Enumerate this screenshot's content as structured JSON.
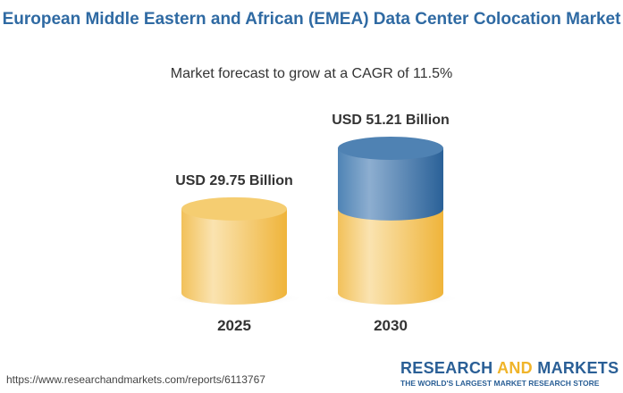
{
  "title": "European Middle Eastern and African (EMEA) Data Center Colocation Market",
  "subtitle": "Market forecast to grow at a CAGR of 11.5%",
  "chart_data": {
    "type": "bar",
    "style": "3d-cylinder",
    "categories": [
      "2025",
      "2030"
    ],
    "values": [
      29.75,
      51.21
    ],
    "data_labels": [
      "USD 29.75 Billion",
      "USD 51.21 Billion"
    ],
    "colors": {
      "base": "#f3c35a",
      "growth": "#3d74a8"
    }
  },
  "footer": {
    "url": "https://www.researchandmarkets.com/reports/6113767",
    "logo_research": "RESEARCH",
    "logo_and": "AND",
    "logo_markets": "MARKETS",
    "logo_tagline": "THE WORLD'S LARGEST MARKET RESEARCH STORE"
  }
}
